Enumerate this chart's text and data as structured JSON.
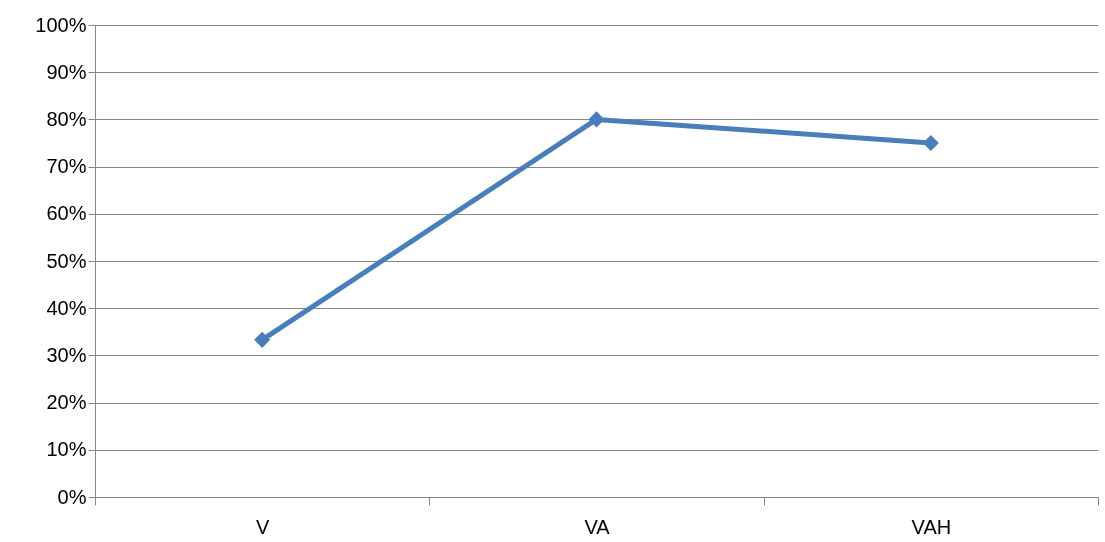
{
  "chart_data": {
    "type": "line",
    "categories": [
      "V",
      "VA",
      "VAH"
    ],
    "series": [
      {
        "color": "#4a7ebb",
        "values": [
          33.3,
          80,
          75
        ]
      }
    ],
    "ylim": [
      0,
      100
    ],
    "yticks": [
      {
        "value": 0,
        "label": "0%"
      },
      {
        "value": 10,
        "label": "10%"
      },
      {
        "value": 20,
        "label": "20%"
      },
      {
        "value": 30,
        "label": "30%"
      },
      {
        "value": 40,
        "label": "40%"
      },
      {
        "value": 50,
        "label": "50%"
      },
      {
        "value": 60,
        "label": "60%"
      },
      {
        "value": 70,
        "label": "70%"
      },
      {
        "value": 80,
        "label": "80%"
      },
      {
        "value": 90,
        "label": "90%"
      },
      {
        "value": 100,
        "label": "100%"
      }
    ],
    "grid": "y",
    "legend": false,
    "marker": "diamond",
    "line_style": "solid"
  }
}
